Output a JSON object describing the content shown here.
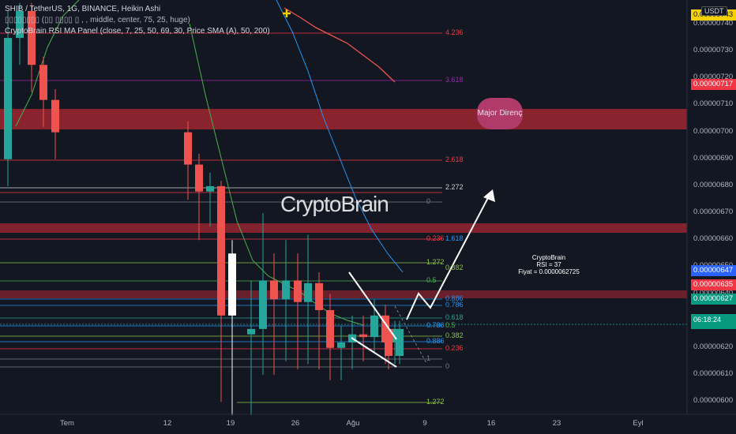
{
  "header": {
    "line1": "SHIB / TetherUS, 1G, BINANCE, Heikin Ashi",
    "line2": "▯▯▯▯▯▯▯▯ (▯▯ ▯▯▯▯ ▯ , , middle, center, 75, 25, huge)",
    "line3": "CryptoBrain RSI MA Panel (close, 7, 25, 50, 69, 30, Price SMA (A), 50, 200)"
  },
  "currency": "USDT",
  "watermark": "CryptoBrain",
  "annotation_bubble": "Major Direnç",
  "info_box": [
    "CryptoBrain",
    "RSI = 37",
    "Fiyat = 0.0000062725"
  ],
  "countdown": "06:18:24",
  "price_axis": {
    "ticks": [
      "0.00000740",
      "0.00000730",
      "0.00000720",
      "0.00000710",
      "0.00000700",
      "0.00000690",
      "0.00000680",
      "0.00000670",
      "0.00000660",
      "0.00000650",
      "0.00000640",
      "0.00000630",
      "0.00000620",
      "0.00000610",
      "0.00000600"
    ],
    "labels": [
      {
        "text": "0.00000743",
        "color": "#f5d100",
        "text_color": "#131722"
      },
      {
        "text": "0.00000717",
        "color": "#f23645",
        "text_color": "#ffffff"
      },
      {
        "text": "0.00000647",
        "color": "#2962ff",
        "text_color": "#ffffff"
      },
      {
        "text": "0.00000635",
        "color": "#f23645",
        "text_color": "#ffffff"
      },
      {
        "text": "0.00000627",
        "color": "#089981",
        "text_color": "#ffffff"
      },
      {
        "text": "0.00000627",
        "color": "#089981",
        "text_color": "#ffffff"
      }
    ]
  },
  "date_axis": [
    "Tem",
    "12",
    "19",
    "26",
    "Ağu",
    "9",
    "16",
    "23",
    "Eyl"
  ],
  "fib_levels": [
    {
      "text": "4.236",
      "color": "#f23645"
    },
    {
      "text": "3.618",
      "color": "#9c27b0"
    },
    {
      "text": "2.618",
      "color": "#f23645"
    },
    {
      "text": "2.272",
      "color": "#cfcfcf"
    },
    {
      "text": "0",
      "color": "#787b86"
    },
    {
      "text": "0.236",
      "color": "#f23645"
    },
    {
      "text": "1.618",
      "color": "#2196f3"
    },
    {
      "text": "1.272",
      "color": "#8bc34a"
    },
    {
      "text": "0.382",
      "color": "#8bc34a"
    },
    {
      "text": "0.5",
      "color": "#4caf50"
    },
    {
      "text": "0.886",
      "color": "#2196f3"
    },
    {
      "text": "0.786",
      "color": "#2196f3"
    },
    {
      "text": "0.618",
      "color": "#26a69a"
    },
    {
      "text": "0.786",
      "color": "#2196f3"
    },
    {
      "text": "0.5",
      "color": "#4caf50"
    },
    {
      "text": "0.382",
      "color": "#8bc34a"
    },
    {
      "text": "0.886",
      "color": "#2196f3"
    },
    {
      "text": "0.236",
      "color": "#f23645"
    },
    {
      "text": "1",
      "color": "#787b86"
    },
    {
      "text": "0",
      "color": "#787b86"
    },
    {
      "text": "1.272",
      "color": "#8bc34a"
    }
  ],
  "colors": {
    "bg": "#131722",
    "up": "#26a69a",
    "down": "#ef5350",
    "zone": "#b22833"
  },
  "chart_data": {
    "type": "candlestick",
    "title": "SHIB / TetherUS, 1G, BINANCE, Heikin Ashi",
    "ylim": [
      5.97e-06,
      7.46e-06
    ],
    "candles": [
      {
        "o": 6.9e-06,
        "c": 7.35e-06,
        "h": 7.45e-06,
        "l": 6.8e-06
      },
      {
        "o": 7.35e-06,
        "c": 7.45e-06,
        "h": 7.48e-06,
        "l": 7.25e-06
      },
      {
        "o": 7.45e-06,
        "c": 7.25e-06,
        "h": 7.48e-06,
        "l": 7.15e-06
      },
      {
        "o": 7.25e-06,
        "c": 7.12e-06,
        "h": 7.28e-06,
        "l": 7.02e-06
      },
      {
        "o": 7.12e-06,
        "c": 7e-06,
        "h": 7.16e-06,
        "l": 6.9e-06
      },
      {
        "o": 7e-06,
        "c": 6.88e-06,
        "h": 7.04e-06,
        "l": 6.75e-06
      },
      {
        "o": 6.88e-06,
        "c": 6.78e-06,
        "h": 6.92e-06,
        "l": 6.6e-06
      },
      {
        "o": 6.78e-06,
        "c": 6.8e-06,
        "h": 6.85e-06,
        "l": 6.65e-06
      },
      {
        "o": 6.8e-06,
        "c": 6.32e-06,
        "h": 6.82e-06,
        "l": 6e-06
      },
      {
        "o": 6.32e-06,
        "c": 6.55e-06,
        "h": 6.6e-06,
        "l": 5.95e-06
      },
      {
        "o": 6.25e-06,
        "c": 6.27e-06,
        "h": 6.45e-06,
        "l": 5.95e-06
      },
      {
        "o": 6.27e-06,
        "c": 6.45e-06,
        "h": 6.7e-06,
        "l": 6.1e-06
      },
      {
        "o": 6.45e-06,
        "c": 6.38e-06,
        "h": 6.55e-06,
        "l": 6.1e-06
      },
      {
        "o": 6.38e-06,
        "c": 6.45e-06,
        "h": 6.6e-06,
        "l": 6.15e-06
      },
      {
        "o": 6.45e-06,
        "c": 6.37e-06,
        "h": 6.55e-06,
        "l": 6.12e-06
      },
      {
        "o": 6.37e-06,
        "c": 6.44e-06,
        "h": 6.62e-06,
        "l": 6.14e-06
      },
      {
        "o": 6.44e-06,
        "c": 6.34e-06,
        "h": 6.48e-06,
        "l": 6.12e-06
      },
      {
        "o": 6.34e-06,
        "c": 6.2e-06,
        "h": 6.4e-06,
        "l": 6.08e-06
      },
      {
        "o": 6.2e-06,
        "c": 6.22e-06,
        "h": 6.28e-06,
        "l": 6.08e-06
      },
      {
        "o": 6.22e-06,
        "c": 6.25e-06,
        "h": 6.32e-06,
        "l": 6.12e-06
      },
      {
        "o": 6.25e-06,
        "c": 6.24e-06,
        "h": 6.32e-06,
        "l": 6.15e-06
      },
      {
        "o": 6.24e-06,
        "c": 6.32e-06,
        "h": 6.38e-06,
        "l": 6.18e-06
      },
      {
        "o": 6.32e-06,
        "c": 6.22e-06,
        "h": 6.36e-06,
        "l": 6.14e-06
      },
      {
        "o": 6.22e-06,
        "c": 6.27e-06,
        "h": 6.3e-06,
        "l": 6.14e-06
      },
      {
        "o": 6.27e-06,
        "c": 6.17e-06,
        "h": 6.3e-06,
        "l": 6.12e-06
      },
      {
        "o": 6.17e-06,
        "c": 6.27e-06,
        "h": 6.3e-06,
        "l": 6.14e-06
      }
    ]
  }
}
